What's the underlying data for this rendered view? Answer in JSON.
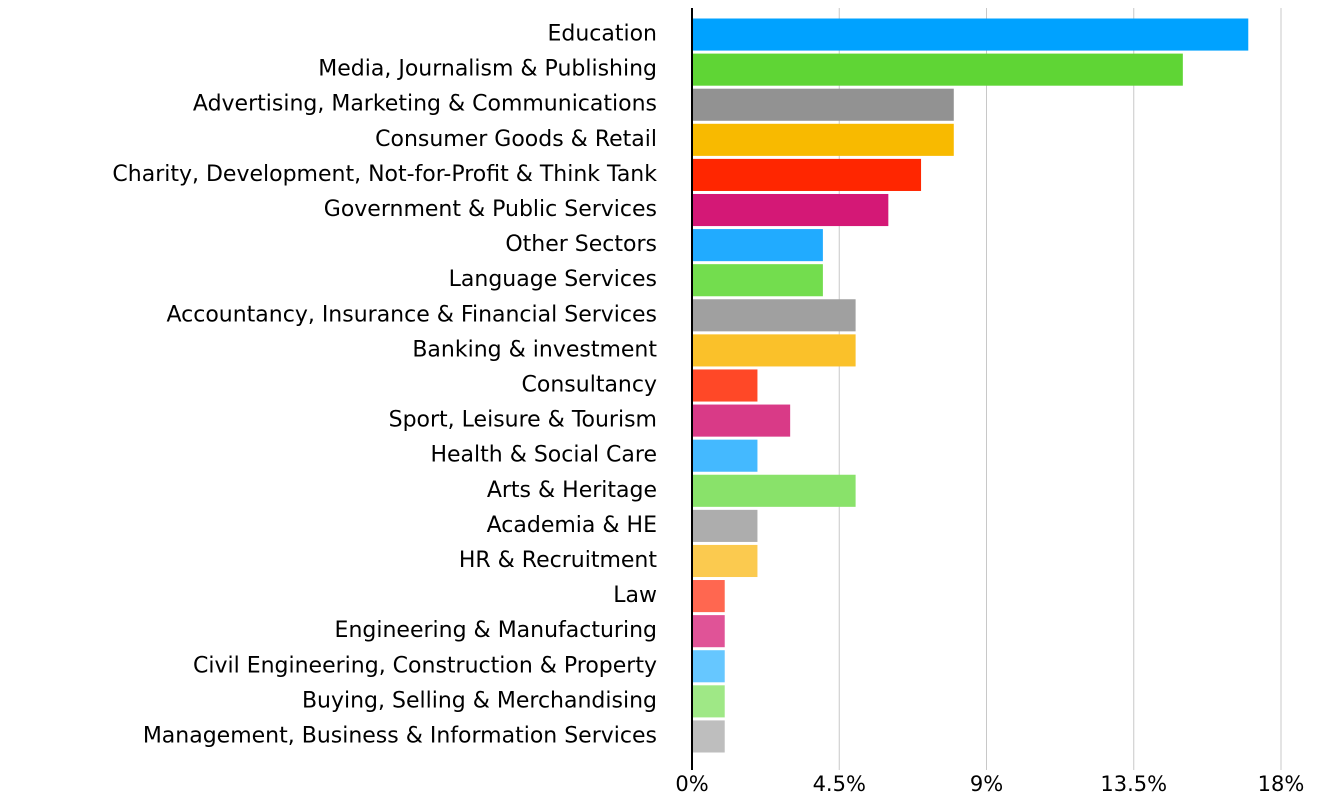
{
  "chart_data": {
    "type": "hbar",
    "categories": [
      "Education",
      "Media, Journalism & Publishing",
      "Advertising, Marketing & Communications",
      "Consumer Goods & Retail",
      "Charity, Development, Not-for-Profit & Think Tank",
      "Government & Public Services",
      "Other Sectors",
      "Language Services",
      "Accountancy, Insurance & Financial Services",
      "Banking & investment",
      "Consultancy",
      "Sport, Leisure & Tourism",
      "Health & Social Care",
      "Arts & Heritage",
      "Academia & HE",
      "HR & Recruitment",
      "Law",
      "Engineering & Manufacturing",
      "Civil Engineering, Construction & Property",
      "Buying, Selling & Merchandising",
      "Management, Business & Information Services"
    ],
    "values": [
      17,
      15,
      8,
      8,
      7,
      6,
      4,
      4,
      5,
      5,
      2,
      3,
      2,
      5,
      2,
      2,
      1,
      1,
      1,
      1,
      1
    ],
    "colors": [
      "#00a2ff",
      "#5fd535",
      "#929292",
      "#f8ba00",
      "#ff2600",
      "#d41876",
      "#21abff",
      "#73dd4e",
      "#a0a0a0",
      "#fac12a",
      "#ff4827",
      "#d93a87",
      "#44b9ff",
      "#89e26a",
      "#adadad",
      "#fbca4f",
      "#ff6750",
      "#e05397",
      "#66c7ff",
      "#9fe886",
      "#bebebe"
    ],
    "xlim": [
      0,
      18
    ],
    "xticks": [
      {
        "value": 0,
        "label": "0%"
      },
      {
        "value": 4.5,
        "label": "4.5%"
      },
      {
        "value": 9,
        "label": "9%"
      },
      {
        "value": 13.5,
        "label": "13.5%"
      },
      {
        "value": 18,
        "label": "18%"
      }
    ],
    "grid": true
  }
}
